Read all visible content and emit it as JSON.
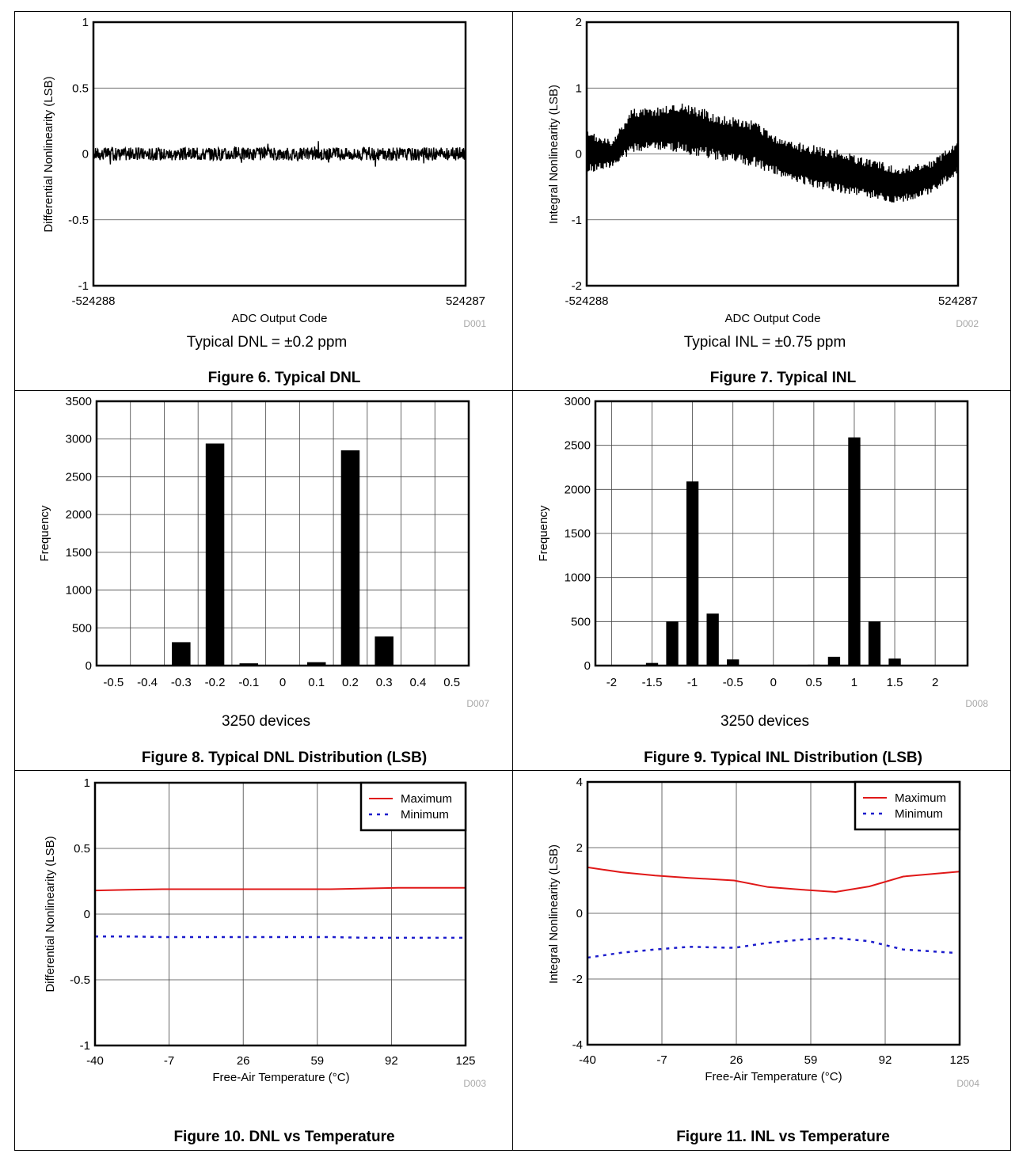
{
  "chart_data": [
    {
      "type": "line",
      "caption": "Figure 6. Typical DNL",
      "note": "Typical DNL = ±0.2 ppm",
      "figure_code": "D001",
      "xlabel": "ADC Output Code",
      "ylabel": "Differential Nonlinearity (LSB)",
      "xlim": [
        -524288,
        524287
      ],
      "ylim": [
        -1,
        1
      ],
      "x_ticks": [
        -524288,
        524287
      ],
      "x_tick_labels": [
        "-524288",
        "524287"
      ],
      "y_ticks": [
        -1,
        -0.5,
        0,
        0.5,
        1
      ],
      "y_tick_labels": [
        "-1",
        "-0.5",
        "0",
        "0.5",
        "1"
      ],
      "grid": "horizontal",
      "series": [
        {
          "color": "#000000",
          "band": {
            "center": 0,
            "amplitude": 0.05,
            "spikes": 0.1
          }
        }
      ]
    },
    {
      "type": "line",
      "caption": "Figure 7. Typical INL",
      "note": "Typical INL = ±0.75 ppm",
      "figure_code": "D002",
      "xlabel": "ADC Output Code",
      "ylabel": "Integral Nonlinearity (LSB)",
      "xlim": [
        -524288,
        524287
      ],
      "ylim": [
        -2,
        2
      ],
      "x_ticks": [
        -524288,
        524287
      ],
      "x_tick_labels": [
        "-524288",
        "524287"
      ],
      "y_ticks": [
        -2,
        -1,
        0,
        1,
        2
      ],
      "y_tick_labels": [
        "-2",
        "-1",
        "0",
        "1",
        "2"
      ],
      "grid": "horizontal",
      "series": [
        {
          "color": "#000000",
          "envelope": {
            "x": [
              -524288,
              -450000,
              -400000,
              -350000,
              -300000,
              -250000,
              -200000,
              -150000,
              -100000,
              -50000,
              0,
              50000,
              100000,
              150000,
              200000,
              250000,
              300000,
              350000,
              400000,
              450000,
              524287
            ],
            "upper": [
              0.35,
              0.2,
              0.7,
              0.7,
              0.75,
              0.8,
              0.7,
              0.6,
              0.55,
              0.5,
              0.3,
              0.2,
              0.15,
              0.1,
              0.05,
              -0.05,
              -0.1,
              -0.2,
              -0.15,
              -0.1,
              0.2
            ],
            "lower": [
              -0.3,
              -0.2,
              0.0,
              0.05,
              0.05,
              0.0,
              -0.05,
              -0.1,
              -0.15,
              -0.2,
              -0.3,
              -0.4,
              -0.5,
              -0.55,
              -0.6,
              -0.65,
              -0.7,
              -0.75,
              -0.7,
              -0.6,
              -0.3
            ]
          }
        }
      ]
    },
    {
      "type": "bar",
      "caption": "Figure 8. Typical DNL Distribution (LSB)",
      "note": "3250 devices",
      "figure_code": "D007",
      "xlabel": "",
      "ylabel": "Frequency",
      "categories": [
        "-0.5",
        "-0.4",
        "-0.3",
        "-0.2",
        "-0.1",
        "0",
        "0.1",
        "0.2",
        "0.3",
        "0.4",
        "0.5"
      ],
      "values": [
        0,
        0,
        310,
        2940,
        30,
        0,
        45,
        2850,
        385,
        0,
        0
      ],
      "ylim": [
        0,
        3500
      ],
      "y_ticks": [
        0,
        500,
        1000,
        1500,
        2000,
        2500,
        3000,
        3500
      ],
      "y_tick_labels": [
        "0",
        "500",
        "1000",
        "1500",
        "2000",
        "2500",
        "3000",
        "3500"
      ],
      "grid": "both"
    },
    {
      "type": "bar",
      "caption": "Figure 9. Typical INL Distribution (LSB)",
      "note": "3250 devices",
      "figure_code": "D008",
      "xlabel": "",
      "ylabel": "Frequency",
      "x": [
        -2,
        -1.75,
        -1.5,
        -1.25,
        -1,
        -0.75,
        -0.5,
        -0.25,
        0,
        0.25,
        0.5,
        0.75,
        1,
        1.25,
        1.5,
        1.75,
        2
      ],
      "values": [
        0,
        0,
        30,
        500,
        2090,
        590,
        70,
        0,
        0,
        0,
        10,
        100,
        2590,
        500,
        80,
        0,
        0
      ],
      "xlim": [
        -2.2,
        2.4
      ],
      "x_ticks": [
        -2,
        -1.5,
        -1,
        -0.5,
        0,
        0.5,
        1,
        1.5,
        2
      ],
      "x_tick_labels": [
        "-2",
        "-1.5",
        "-1",
        "-0.5",
        "0",
        "0.5",
        "1",
        "1.5",
        "2"
      ],
      "ylim": [
        0,
        3000
      ],
      "y_ticks": [
        0,
        500,
        1000,
        1500,
        2000,
        2500,
        3000
      ],
      "y_tick_labels": [
        "0",
        "500",
        "1000",
        "1500",
        "2000",
        "2500",
        "3000"
      ],
      "grid": "both"
    },
    {
      "type": "line",
      "caption": "Figure 10. DNL vs Temperature",
      "figure_code": "D003",
      "xlabel": "Free-Air Temperature (°C)",
      "ylabel": "Differential Nonlinearity (LSB)",
      "xlim": [
        -40,
        125
      ],
      "ylim": [
        -1,
        1
      ],
      "x_ticks": [
        -40,
        -7,
        26,
        59,
        92,
        125
      ],
      "x_tick_labels": [
        "-40",
        "-7",
        "26",
        "59",
        "92",
        "125"
      ],
      "y_ticks": [
        -1,
        -0.5,
        0,
        0.5,
        1
      ],
      "y_tick_labels": [
        "-1",
        "-0.5",
        "0",
        "0.5",
        "1"
      ],
      "grid": "both",
      "legend": "top-right",
      "series": [
        {
          "name": "Maximum",
          "color": "#e01818",
          "dash": false,
          "x": [
            -40,
            -25,
            -10,
            5,
            20,
            35,
            50,
            65,
            80,
            95,
            110,
            125
          ],
          "y": [
            0.18,
            0.185,
            0.19,
            0.19,
            0.19,
            0.19,
            0.19,
            0.19,
            0.195,
            0.2,
            0.2,
            0.2
          ]
        },
        {
          "name": "Minimum",
          "color": "#1c1ccc",
          "dash": true,
          "x": [
            -40,
            -25,
            -10,
            5,
            20,
            35,
            50,
            65,
            80,
            95,
            110,
            125
          ],
          "y": [
            -0.17,
            -0.17,
            -0.175,
            -0.175,
            -0.175,
            -0.175,
            -0.175,
            -0.175,
            -0.18,
            -0.18,
            -0.18,
            -0.18
          ]
        }
      ]
    },
    {
      "type": "line",
      "caption": "Figure 11. INL vs Temperature",
      "figure_code": "D004",
      "xlabel": "Free-Air Temperature (°C)",
      "ylabel": "Integral Nonlinearity (LSB)",
      "xlim": [
        -40,
        125
      ],
      "ylim": [
        -4,
        4
      ],
      "x_ticks": [
        -40,
        -7,
        26,
        59,
        92,
        125
      ],
      "x_tick_labels": [
        "-40",
        "-7",
        "26",
        "59",
        "92",
        "125"
      ],
      "y_ticks": [
        -4,
        -2,
        0,
        2,
        4
      ],
      "y_tick_labels": [
        "-4",
        "-2",
        "0",
        "2",
        "4"
      ],
      "grid": "both",
      "legend": "top-right",
      "series": [
        {
          "name": "Maximum",
          "color": "#e01818",
          "dash": false,
          "x": [
            -40,
            -25,
            -10,
            5,
            25,
            40,
            55,
            70,
            85,
            100,
            125
          ],
          "y": [
            1.4,
            1.25,
            1.15,
            1.08,
            1.0,
            0.8,
            0.72,
            0.65,
            0.82,
            1.12,
            1.27
          ]
        },
        {
          "name": "Minimum",
          "color": "#1c1ccc",
          "dash": true,
          "x": [
            -40,
            -25,
            -10,
            5,
            25,
            40,
            55,
            70,
            85,
            100,
            122
          ],
          "y": [
            -1.35,
            -1.2,
            -1.1,
            -1.02,
            -1.05,
            -0.9,
            -0.8,
            -0.75,
            -0.85,
            -1.1,
            -1.2
          ]
        }
      ]
    }
  ]
}
